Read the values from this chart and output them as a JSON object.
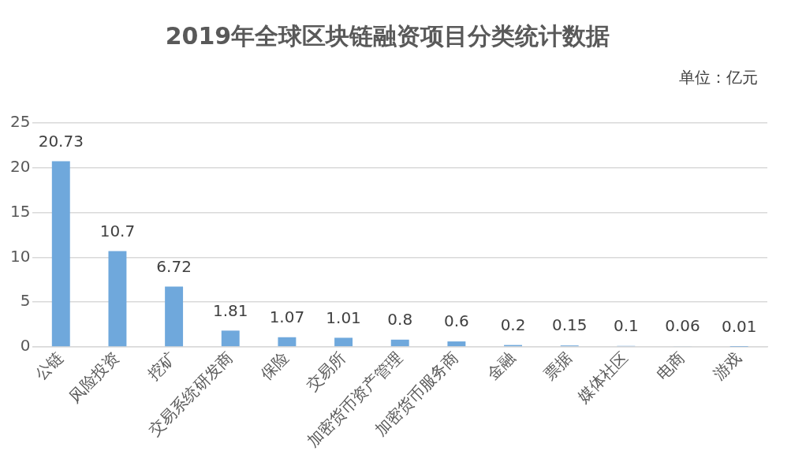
{
  "chart_data": {
    "type": "bar",
    "title": "2019年全球区块链融资项目分类统计数据",
    "annotations": [
      "单位：亿元"
    ],
    "categories": [
      "公链",
      "风险投资",
      "挖矿",
      "交易系统研发商",
      "保险",
      "交易所",
      "加密货币资产管理",
      "加密货币服务商",
      "金融",
      "票据",
      "媒体社区",
      "电商",
      "游戏"
    ],
    "values": [
      20.73,
      10.7,
      6.72,
      1.81,
      1.07,
      1.01,
      0.8,
      0.6,
      0.2,
      0.15,
      0.1,
      0.06,
      0.01
    ],
    "color": "#6fa8dc",
    "ylim": [
      0,
      25
    ],
    "yticks": [
      0,
      5,
      10,
      15,
      20,
      25
    ],
    "grid": "y",
    "data_labels": true,
    "legend": false
  }
}
